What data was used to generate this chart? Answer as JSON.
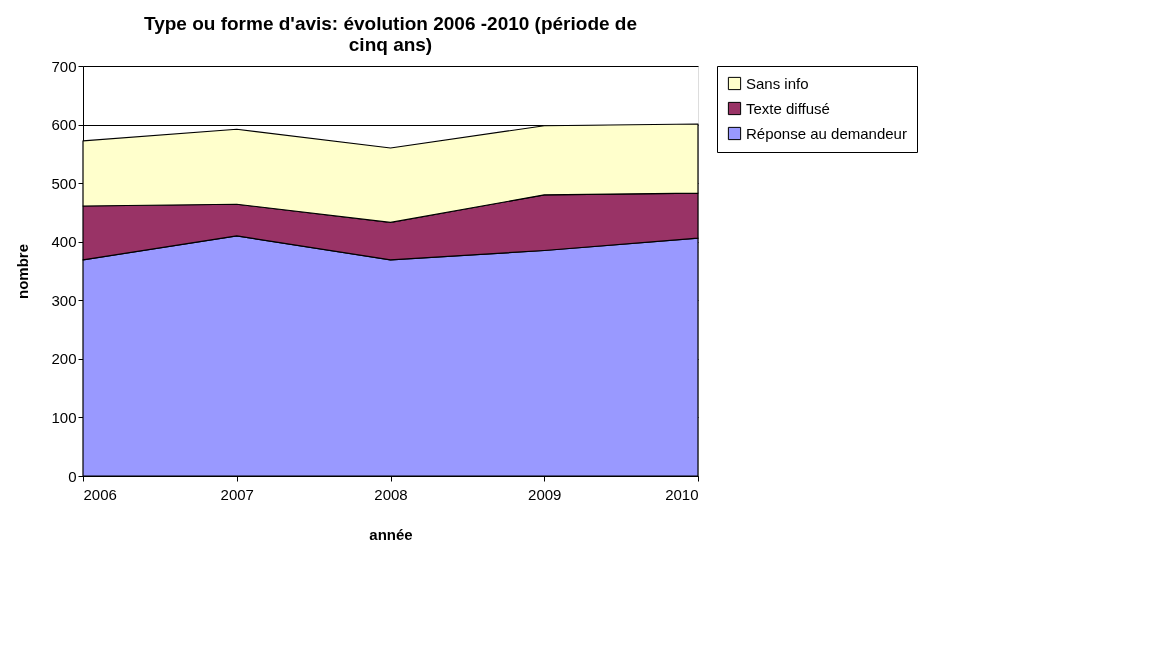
{
  "chart_data": {
    "type": "area",
    "title": "Type ou forme d'avis: évolution 2006 -2010 (période de cinq ans)",
    "xlabel": "année",
    "ylabel": "nombre",
    "categories": [
      "2006",
      "2007",
      "2008",
      "2009",
      "2010"
    ],
    "stacked": true,
    "series": [
      {
        "name": "Réponse au demandeur",
        "color": "#9999ff",
        "values": [
          369,
          410,
          369,
          385,
          406
        ]
      },
      {
        "name": "Texte diffusé",
        "color": "#993366",
        "values": [
          92,
          54,
          64,
          95,
          77
        ]
      },
      {
        "name": "Sans info",
        "color": "#ffffcc",
        "values": [
          111,
          128,
          127,
          118,
          118
        ]
      }
    ],
    "ylim": [
      0,
      700
    ],
    "yticks": [
      0,
      100,
      200,
      300,
      400,
      500,
      600,
      700
    ],
    "grid": "y",
    "legend": "right"
  }
}
